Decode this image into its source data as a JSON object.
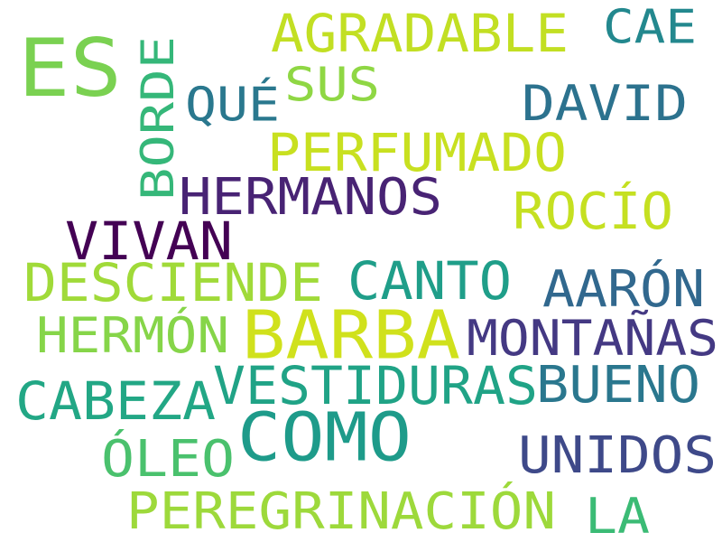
{
  "words": [
    {
      "text": "ES",
      "color": "#7ad151"
    },
    {
      "text": "AGRADABLE",
      "color": "#c2df23"
    },
    {
      "text": "CAE",
      "color": "#23888e"
    },
    {
      "text": "BORDE",
      "color": "#35b779"
    },
    {
      "text": "SUS",
      "color": "#8fd744"
    },
    {
      "text": "QUÉ",
      "color": "#2a788e"
    },
    {
      "text": "DAVID",
      "color": "#2c728e"
    },
    {
      "text": "PERFUMADO",
      "color": "#c8e020"
    },
    {
      "text": "HERMANOS",
      "color": "#482374"
    },
    {
      "text": "ROCÍO",
      "color": "#c5e021"
    },
    {
      "text": "VIVAN",
      "color": "#440154"
    },
    {
      "text": "DESCIENDE",
      "color": "#a0da39"
    },
    {
      "text": "CANTO",
      "color": "#1f9e89"
    },
    {
      "text": "AARÓN",
      "color": "#31688e"
    },
    {
      "text": "HERMÓN",
      "color": "#86d549"
    },
    {
      "text": "BARBA",
      "color": "#d0e11c"
    },
    {
      "text": "MONTAÑAS",
      "color": "#443983"
    },
    {
      "text": "CABEZA",
      "color": "#22a785"
    },
    {
      "text": "VESTIDURAS",
      "color": "#20a386"
    },
    {
      "text": "BUENO",
      "color": "#2a778e"
    },
    {
      "text": "COMO",
      "color": "#1e9b8a"
    },
    {
      "text": "ÓLEO",
      "color": "#4ac16d"
    },
    {
      "text": "UNIDOS",
      "color": "#3e4989"
    },
    {
      "text": "PEREGRINACIÓN",
      "color": "#9dd93b"
    },
    {
      "text": "LA",
      "color": "#3bbb75"
    }
  ]
}
